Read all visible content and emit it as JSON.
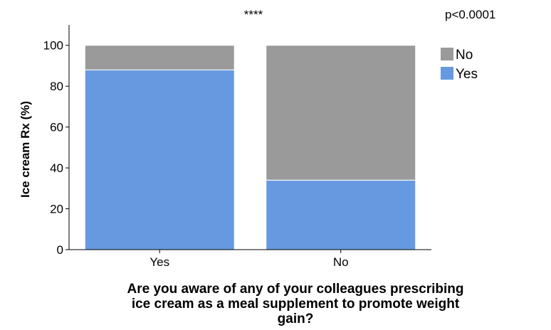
{
  "chart_data": {
    "type": "bar",
    "stacked": true,
    "percent": true,
    "categories": [
      "Yes",
      "No"
    ],
    "series": [
      {
        "name": "Yes",
        "values": [
          88,
          34
        ],
        "color": "#6699e0"
      },
      {
        "name": "No",
        "values": [
          12,
          66
        ],
        "color": "#9a9a9a"
      }
    ],
    "ylim": [
      0,
      110
    ],
    "yticks": [
      0,
      20,
      40,
      60,
      80,
      100
    ],
    "ylabel": "Ice cream Rx (%)",
    "xlabel_lines": [
      "Are you aware of any of your colleagues prescribing",
      "ice cream as a meal supplement to promote weight",
      "gain?"
    ],
    "annotations": {
      "significance": "****",
      "pvalue": "p<0.0001"
    },
    "legend": {
      "position": "top-right",
      "entries": [
        "No",
        "Yes"
      ]
    },
    "grid": false
  }
}
